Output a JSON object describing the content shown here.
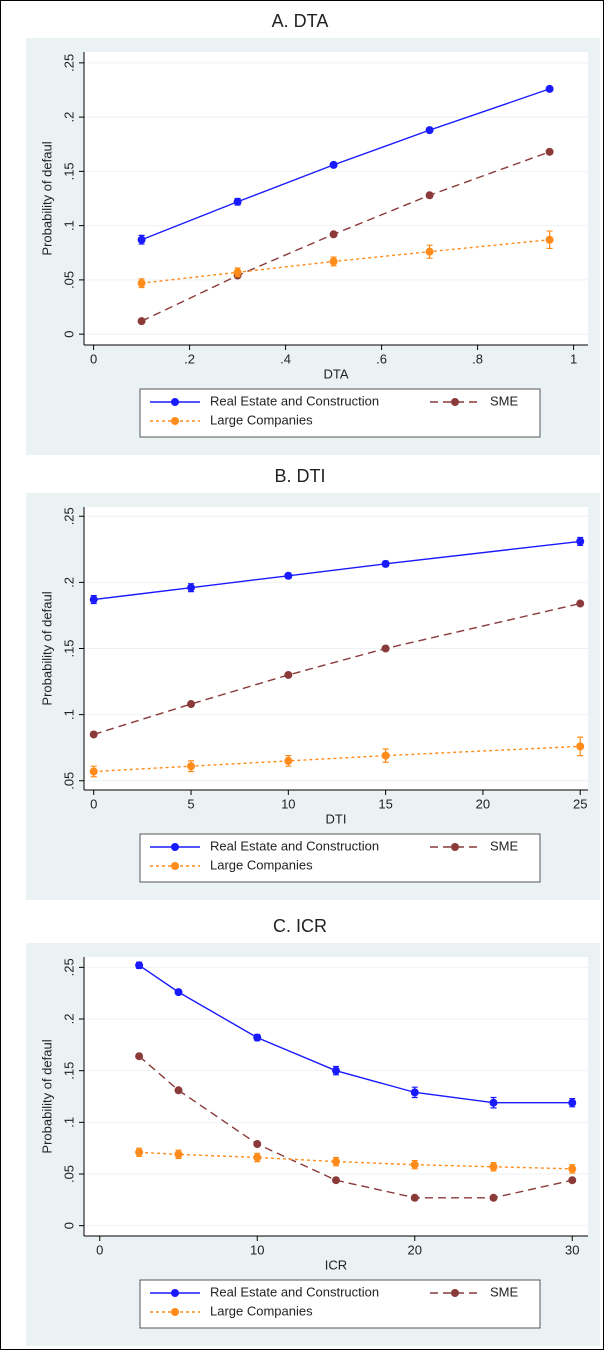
{
  "chart_data": [
    {
      "type": "line",
      "title": "A.   DTA",
      "x_label": "DTA",
      "y_label": "Probability of defaul",
      "x": [
        0.1,
        0.3,
        0.5,
        0.7,
        0.95
      ],
      "xlim": [
        -0.02,
        1.03
      ],
      "xticks": [
        0,
        {
          "value": 0.2,
          "label": ".2"
        },
        {
          "value": 0.4,
          "label": ".4"
        },
        {
          "value": 0.6,
          "label": ".6"
        },
        {
          "value": 0.8,
          "label": ".8"
        },
        1
      ],
      "ylim": [
        -0.01,
        0.26
      ],
      "yticks": [
        0,
        {
          "value": 0.05,
          "label": ".05"
        },
        {
          "value": 0.1,
          "label": ".1"
        },
        {
          "value": 0.15,
          "label": ".15"
        },
        {
          "value": 0.2,
          "label": ".2"
        },
        {
          "value": 0.25,
          "label": ".25"
        }
      ],
      "grid": true,
      "series": [
        {
          "name": "Real Estate and Construction",
          "color": "#1a1aff",
          "line_style": "solid",
          "values": [
            0.087,
            0.122,
            0.156,
            0.188,
            0.226
          ],
          "errors": [
            0.004,
            0.003,
            0.002,
            0.002,
            0.002
          ]
        },
        {
          "name": "SME",
          "color": "#8b3a3a",
          "line_style": "dash",
          "values": [
            0.012,
            0.054,
            0.092,
            0.128,
            0.168
          ]
        },
        {
          "name": "Large Companies",
          "color": "#ff8c1a",
          "line_style": "dot",
          "values": [
            0.047,
            0.057,
            0.067,
            0.076,
            0.087
          ],
          "errors": [
            0.004,
            0.004,
            0.004,
            0.006,
            0.008
          ]
        }
      ]
    },
    {
      "type": "line",
      "title": "B.   DTI",
      "x_label": "DTI",
      "y_label": "Probability of defaul",
      "x": [
        0,
        5,
        10,
        15,
        25
      ],
      "xlim": [
        -0.5,
        25.4
      ],
      "xticks": [
        0,
        5,
        10,
        15,
        20,
        25
      ],
      "ylim": [
        0.043,
        0.257
      ],
      "yticks": [
        {
          "value": 0.05,
          "label": ".05"
        },
        {
          "value": 0.1,
          "label": ".1"
        },
        {
          "value": 0.15,
          "label": ".15"
        },
        {
          "value": 0.2,
          "label": ".2"
        },
        {
          "value": 0.25,
          "label": ".25"
        }
      ],
      "grid": true,
      "series": [
        {
          "name": "Real Estate and Construction",
          "color": "#1a1aff",
          "line_style": "solid",
          "values": [
            0.187,
            0.196,
            0.205,
            0.214,
            0.231
          ],
          "errors": [
            0.003,
            0.003,
            0.002,
            0.002,
            0.003
          ]
        },
        {
          "name": "SME",
          "color": "#8b3a3a",
          "line_style": "dash",
          "values": [
            0.085,
            0.108,
            0.13,
            0.15,
            0.184
          ]
        },
        {
          "name": "Large Companies",
          "color": "#ff8c1a",
          "line_style": "dot",
          "values": [
            0.057,
            0.061,
            0.065,
            0.069,
            0.076
          ],
          "errors": [
            0.004,
            0.004,
            0.004,
            0.005,
            0.007
          ]
        }
      ]
    },
    {
      "type": "line",
      "title": "C.   ICR",
      "x_label": "ICR",
      "y_label": "Probability of defaul",
      "x": [
        2.5,
        5,
        10,
        15,
        20,
        25,
        30
      ],
      "xlim": [
        -1,
        31
      ],
      "xticks": [
        0,
        10,
        20,
        30
      ],
      "ylim": [
        -0.01,
        0.26
      ],
      "yticks": [
        0,
        {
          "value": 0.05,
          "label": ".05"
        },
        {
          "value": 0.1,
          "label": ".1"
        },
        {
          "value": 0.15,
          "label": ".15"
        },
        {
          "value": 0.2,
          "label": ".2"
        },
        {
          "value": 0.25,
          "label": ".25"
        }
      ],
      "grid": true,
      "series": [
        {
          "name": "Real Estate and Construction",
          "color": "#1a1aff",
          "line_style": "solid",
          "values": [
            0.252,
            0.226,
            0.182,
            0.15,
            0.129,
            0.119,
            0.119
          ],
          "errors": [
            0.003,
            0.002,
            0.003,
            0.004,
            0.005,
            0.005,
            0.004
          ]
        },
        {
          "name": "SME",
          "color": "#8b3a3a",
          "line_style": "dash",
          "values": [
            0.164,
            0.131,
            0.079,
            0.044,
            0.027,
            0.027,
            0.044
          ]
        },
        {
          "name": "Large Companies",
          "color": "#ff8c1a",
          "line_style": "dot",
          "values": [
            0.071,
            0.069,
            0.066,
            0.062,
            0.059,
            0.057,
            0.055
          ],
          "errors": [
            0.004,
            0.004,
            0.004,
            0.004,
            0.004,
            0.004,
            0.004
          ]
        }
      ]
    }
  ]
}
